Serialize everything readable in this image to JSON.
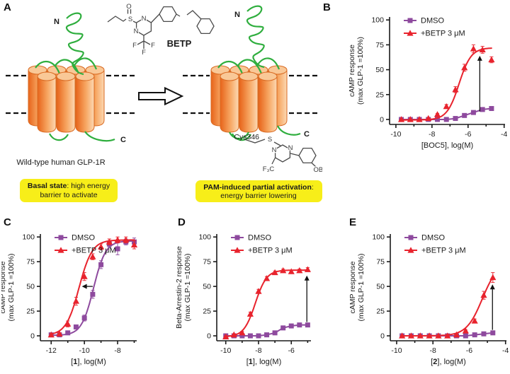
{
  "figure": {
    "panels": {
      "a": "A",
      "b": "B",
      "c": "C",
      "d": "D",
      "e": "E"
    }
  },
  "colors": {
    "dmso_purple": "#8e4a9e",
    "betp_red": "#e8232d",
    "loop_green": "#2fae3e",
    "helix_orange": "#e8681c",
    "highlight_yellow": "#f7ee19"
  },
  "panelA": {
    "n_label": "N",
    "c_label": "C",
    "betp_label": "BETP",
    "cys_label": "Cys346",
    "caption": "Wild-type human GLP-1R",
    "basal_bold": "Basal state",
    "basal_rest": ": high energy",
    "basal_line2": "barrier to activate",
    "pam_bold": "PAM-induced partial activation",
    "pam_rest": ":",
    "pam_line2": "energy barrier lowering",
    "atoms": {
      "o": "O",
      "s": "S",
      "n1": "N",
      "n2": "N",
      "f1": "F",
      "f2": "F",
      "f3": "F",
      "s2": "S",
      "n3": "N",
      "n4": "N",
      "f3c": "F₃C",
      "obn": "OBn"
    }
  },
  "chart_data": [
    {
      "panel": "B",
      "type": "line",
      "ylabel_lines": [
        "cAMP response",
        "(max GLP-1 =100%)"
      ],
      "xlabel_runs": [
        {
          "text": "[BOC5], log(M)",
          "bold": false
        }
      ],
      "xlim": [
        -10.35,
        -3.95
      ],
      "ylim": [
        -5,
        103
      ],
      "xticks": [
        -10,
        -8,
        -6,
        -4
      ],
      "xminor": [
        -9,
        -7,
        -5
      ],
      "yticks": [
        0,
        25,
        50,
        75,
        100
      ],
      "x": [
        -9.7,
        -9.2,
        -8.7,
        -8.2,
        -7.7,
        -7.2,
        -6.7,
        -6.2,
        -5.7,
        -5.2,
        -4.7
      ],
      "series": [
        {
          "name": "DMSO",
          "color": "#8e4a9e",
          "marker": "square",
          "y": [
            0,
            0,
            0,
            0,
            0,
            0,
            1,
            4,
            7,
            10,
            11
          ],
          "err": [
            0,
            0,
            0,
            0,
            0,
            0,
            0,
            1,
            1,
            1.5,
            2
          ]
        },
        {
          "name": "+BETP 3 μM",
          "color": "#e8232d",
          "marker": "triangle",
          "y": [
            0,
            0,
            0,
            1,
            5,
            13,
            30,
            52,
            71,
            70,
            60
          ],
          "err": [
            0,
            0,
            0,
            0.5,
            1,
            2,
            3,
            3.5,
            4,
            3.5,
            3
          ],
          "fit": {
            "bottom": -0.5,
            "top": 72,
            "ec50": -6.5,
            "hill": 1.3
          }
        }
      ],
      "arrow": {
        "x1": -5.35,
        "y1": 8,
        "x2": -5.35,
        "y2": 64
      }
    },
    {
      "panel": "C",
      "type": "line",
      "ylabel_lines": [
        "cAMP response",
        "(max GLP-1 =100%)"
      ],
      "xlabel_runs": [
        {
          "text": "[",
          "bold": false
        },
        {
          "text": "1",
          "bold": true
        },
        {
          "text": "], log(M)",
          "bold": false
        }
      ],
      "xlim": [
        -12.65,
        -6.85
      ],
      "ylim": [
        -5,
        103
      ],
      "xticks": [
        -12,
        -10,
        -8
      ],
      "xminor": [
        -11,
        -9,
        -7
      ],
      "yticks": [
        0,
        25,
        50,
        75,
        100
      ],
      "x": [
        -12,
        -11.5,
        -11,
        -10.5,
        -10,
        -9.5,
        -9,
        -8.5,
        -8,
        -7.5,
        -7
      ],
      "series": [
        {
          "name": "DMSO",
          "color": "#8e4a9e",
          "marker": "square",
          "y": [
            1,
            1,
            3,
            9,
            18,
            42,
            72,
            93,
            88,
            95,
            95
          ],
          "err": [
            1,
            1,
            1,
            2,
            3,
            4,
            4,
            3,
            6,
            3,
            4
          ],
          "fit": {
            "bottom": 0.5,
            "top": 96,
            "ec50": -9.45,
            "hill": 1.2
          }
        },
        {
          "name": "+BETP 3 μM",
          "color": "#e8232d",
          "marker": "triangle",
          "y": [
            1,
            2,
            12,
            35,
            60,
            80,
            90,
            95,
            97,
            97,
            92
          ],
          "err": [
            1,
            1,
            3,
            4,
            4,
            3,
            3,
            3,
            3,
            3,
            4
          ],
          "fit": {
            "bottom": 0.5,
            "top": 97,
            "ec50": -10.32,
            "hill": 1.1
          }
        }
      ],
      "arrow": {
        "x1": -9.5,
        "y1": 50,
        "x2": -10.15,
        "y2": 50
      }
    },
    {
      "panel": "D",
      "type": "line",
      "ylabel_lines": [
        "Beta-Arrestin-2 response",
        "(max GLP-1 =100%)"
      ],
      "xlabel_runs": [
        {
          "text": "[",
          "bold": false
        },
        {
          "text": "1",
          "bold": true
        },
        {
          "text": "], log(M)",
          "bold": false
        }
      ],
      "xlim": [
        -10.55,
        -4.8
      ],
      "ylim": [
        -5,
        103
      ],
      "xticks": [
        -10,
        -8,
        -6
      ],
      "xminor": [
        -9,
        -7,
        -5
      ],
      "yticks": [
        0,
        25,
        50,
        75,
        100
      ],
      "x": [
        -10,
        -9.5,
        -9,
        -8.5,
        -8,
        -7.5,
        -7,
        -6.5,
        -6,
        -5.5,
        -5
      ],
      "series": [
        {
          "name": "DMSO",
          "color": "#8e4a9e",
          "marker": "square",
          "y": [
            0,
            0,
            0,
            0,
            0,
            1,
            3,
            8,
            10,
            11,
            11
          ],
          "err": [
            0.5,
            0.5,
            0.5,
            0.5,
            0.5,
            0.5,
            1,
            1,
            1,
            1,
            1.5
          ]
        },
        {
          "name": "+BETP 3 μM",
          "color": "#e8232d",
          "marker": "triangle",
          "y": [
            -1,
            1,
            3,
            22,
            45,
            58,
            64,
            66,
            65,
            66,
            67
          ],
          "err": [
            1,
            1,
            1.5,
            2,
            2,
            2,
            1.5,
            1.5,
            1.5,
            1.5,
            2
          ],
          "fit": {
            "bottom": -1,
            "top": 66.5,
            "ec50": -8.2,
            "hill": 1.25
          }
        }
      ],
      "arrow": {
        "x1": -5.05,
        "y1": 14,
        "x2": -5.05,
        "y2": 61
      }
    },
    {
      "panel": "E",
      "type": "line",
      "ylabel_lines": [
        "cAMP response",
        "(max GLP-1 =100%)"
      ],
      "xlabel_runs": [
        {
          "text": "[",
          "bold": false
        },
        {
          "text": "2",
          "bold": true
        },
        {
          "text": "], log(M)",
          "bold": false
        }
      ],
      "xlim": [
        -10.35,
        -3.95
      ],
      "ylim": [
        -5,
        103
      ],
      "xticks": [
        -10,
        -8,
        -6,
        -4
      ],
      "xminor": [
        -9,
        -7,
        -5
      ],
      "yticks": [
        0,
        25,
        50,
        75,
        100
      ],
      "x": [
        -9.7,
        -9.2,
        -8.7,
        -8.2,
        -7.7,
        -7.2,
        -6.7,
        -6.2,
        -5.7,
        -5.2,
        -4.7
      ],
      "series": [
        {
          "name": "DMSO",
          "color": "#8e4a9e",
          "marker": "square",
          "y": [
            0,
            0,
            0,
            0,
            0,
            0,
            0,
            0,
            1,
            2,
            3
          ],
          "err": [
            0.5,
            0.5,
            0.5,
            0.5,
            0.5,
            0.5,
            0.5,
            0.5,
            0.5,
            1,
            1
          ]
        },
        {
          "name": "+BETP 3 μM",
          "color": "#e8232d",
          "marker": "triangle",
          "y": [
            0,
            0,
            0,
            0,
            0,
            0,
            1,
            5,
            15,
            41,
            59
          ],
          "err": [
            0.5,
            0.5,
            0.5,
            0.5,
            0.5,
            0.5,
            0.5,
            1,
            2,
            4,
            5
          ],
          "fit": {
            "bottom": 0,
            "top": 75,
            "ec50": -5.28,
            "hill": 1.0
          }
        }
      ],
      "arrow": {
        "x1": -4.72,
        "y1": 6,
        "x2": -4.72,
        "y2": 52
      }
    }
  ]
}
